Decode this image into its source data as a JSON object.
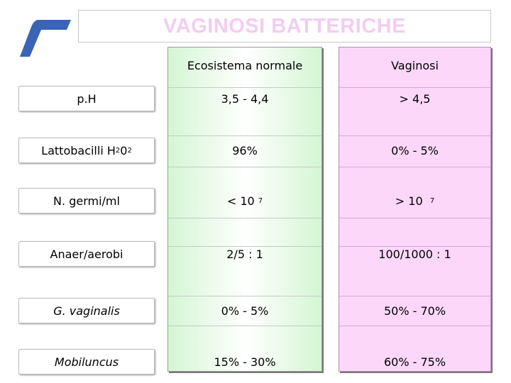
{
  "title": "VAGINOSI BATTERICHE",
  "colors": {
    "title": "#f2cdf0",
    "normal_col": "#d4f6d4",
    "vaginosi_col": "#fcd7fa",
    "logo": "#3a64b5"
  },
  "headers": {
    "normal": "Ecosistema normale",
    "vaginosi": "Vaginosi"
  },
  "rows": [
    {
      "label": "p.H",
      "normal": "3,5 - 4,4",
      "vaginosi": "> 4,5"
    },
    {
      "label": "Lattobacilli H",
      "label_sub1": "2",
      "label_mid": "0",
      "label_sub2": "2",
      "normal": "96%",
      "vaginosi": "0% - 5%"
    },
    {
      "label": "N. germi/ml",
      "normal": "< 10",
      "normal_sup": "7",
      "vaginosi": "> 10",
      "vaginosi_sup": "7"
    },
    {
      "label": "Anaer/aerobi",
      "normal": "2/5 : 1",
      "vaginosi": "100/1000 : 1"
    },
    {
      "label": "G. vaginalis",
      "normal": "0% - 5%",
      "vaginosi": "50% - 70%"
    },
    {
      "label": "Mobiluncus",
      "normal": "15% - 30%",
      "vaginosi": "60% - 75%"
    }
  ]
}
